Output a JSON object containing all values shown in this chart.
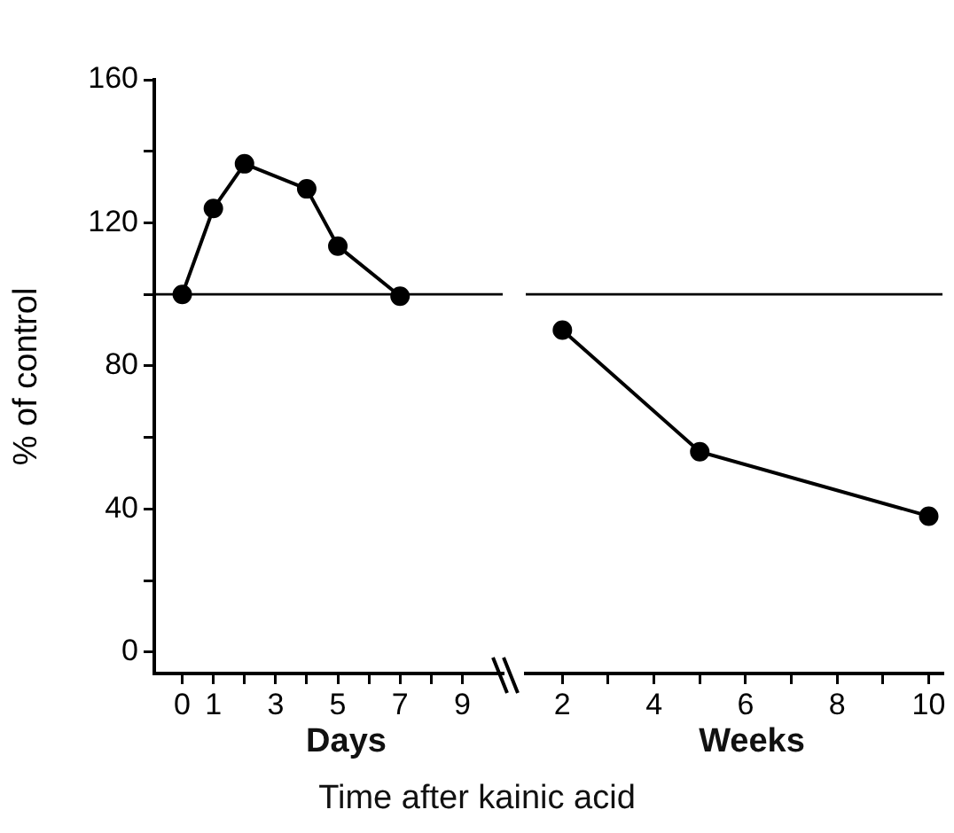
{
  "chart_data": [
    {
      "type": "line",
      "xlabel": "Days",
      "ylabel": "% of control",
      "annotations": [
        "Time after kainic acid"
      ],
      "x": [
        0,
        1,
        2,
        4,
        5,
        7
      ],
      "values": [
        100,
        124,
        136.5,
        129.5,
        113.5,
        99.5
      ],
      "color": "#000000",
      "marker": "circle",
      "xlim": [
        -0.9,
        10.3
      ],
      "xticks": [
        0,
        1,
        {
          "value": 2,
          "label": null
        },
        3,
        {
          "value": 4,
          "label": null
        },
        5,
        {
          "value": 6,
          "label": null
        },
        7,
        {
          "value": 8,
          "label": null
        },
        9
      ],
      "ylim": [
        -6,
        160
      ],
      "yticks": [
        0,
        {
          "value": 20,
          "label": null
        },
        40,
        {
          "value": 60,
          "label": null
        },
        80,
        {
          "value": 100,
          "label": null
        },
        120,
        {
          "value": 140,
          "label": null
        },
        160
      ],
      "ref_lines": [
        {
          "axis": "y",
          "value": 100,
          "color": "#000000"
        }
      ]
    },
    {
      "type": "line",
      "xlabel": "Weeks",
      "x": [
        2,
        5,
        10
      ],
      "values": [
        90,
        56,
        38
      ],
      "color": "#000000",
      "marker": "circle",
      "xlim": [
        1.2,
        10.3
      ],
      "xticks": [
        2,
        {
          "value": 3,
          "label": null
        },
        4,
        {
          "value": 5,
          "label": null
        },
        6,
        {
          "value": 7,
          "label": null
        },
        8,
        {
          "value": 9,
          "label": null
        },
        10
      ],
      "ylim": [
        -6,
        160
      ],
      "yticks": [
        0,
        40,
        80,
        120,
        160
      ],
      "ref_lines": [
        {
          "axis": "y",
          "value": 100,
          "color": "#000000"
        }
      ],
      "tick_labels": "x"
    }
  ]
}
